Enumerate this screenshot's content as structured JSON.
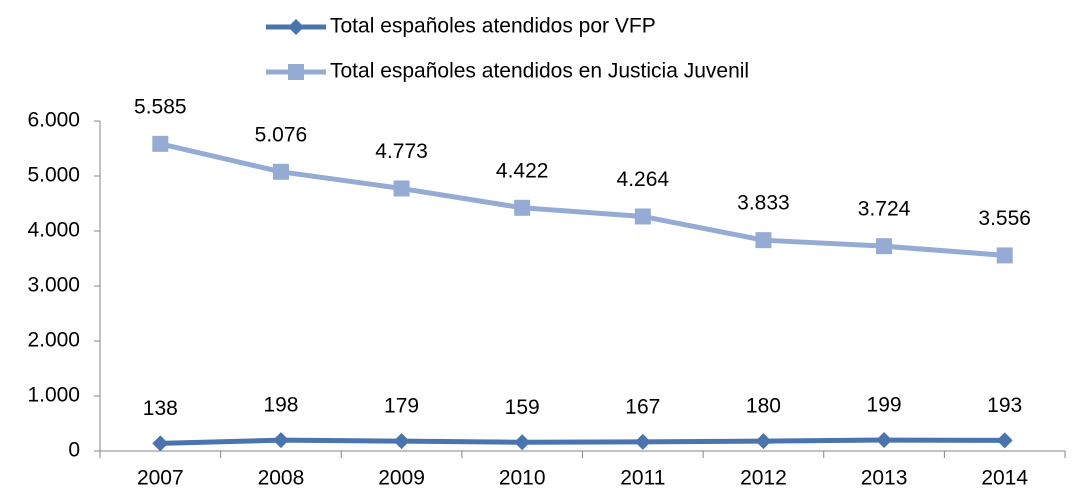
{
  "chart_data": {
    "type": "line",
    "categories": [
      "2007",
      "2008",
      "2009",
      "2010",
      "2011",
      "2012",
      "2013",
      "2014"
    ],
    "series": [
      {
        "name": "Total españoles atendidos por VFP",
        "color": "#4a74ad",
        "marker": "diamond",
        "values": [
          138,
          198,
          179,
          159,
          167,
          180,
          199,
          193
        ]
      },
      {
        "name": "Total españoles atendidos en Justicia Juvenil",
        "color": "#95abd4",
        "marker": "square",
        "values": [
          5585,
          5076,
          4773,
          4422,
          4264,
          3833,
          3724,
          3556
        ],
        "value_labels": [
          "5.585",
          "5.076",
          "4.773",
          "4.422",
          "4.264",
          "3.833",
          "3.724",
          "3.556"
        ]
      }
    ],
    "ylim": [
      0,
      6000
    ],
    "yticks": [
      0,
      {
        "value": 1000,
        "label": "1.000"
      },
      {
        "value": 2000,
        "label": "2.000"
      },
      {
        "value": 3000,
        "label": "3.000"
      },
      {
        "value": 4000,
        "label": "4.000"
      },
      {
        "value": 5000,
        "label": "5.000"
      },
      {
        "value": 6000,
        "label": "6.000"
      }
    ],
    "grid": false,
    "legend": "top"
  }
}
